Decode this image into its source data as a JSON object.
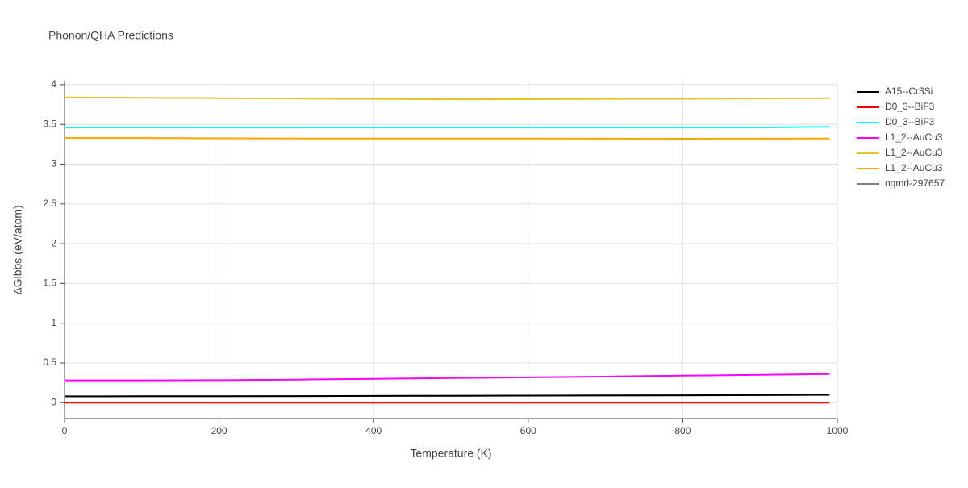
{
  "chart_data": {
    "type": "line",
    "title": "Phonon/QHA Predictions",
    "x_label": "Temperature (K)",
    "y_label": "ΔGibbs (eV/atom)",
    "x": [
      0,
      100,
      200,
      300,
      400,
      500,
      600,
      700,
      800,
      900,
      990
    ],
    "series": [
      {
        "name": "A15--Cr3Si",
        "color": "#000000",
        "values": [
          0.08,
          0.081,
          0.082,
          0.083,
          0.085,
          0.087,
          0.089,
          0.091,
          0.093,
          0.096,
          0.099
        ]
      },
      {
        "name": "D0_3--BiF3",
        "color": "#ff0000",
        "values": [
          0,
          0,
          0,
          0,
          0,
          0,
          0,
          0,
          0,
          0,
          0
        ]
      },
      {
        "name": "D0_3--BiF3",
        "color": "#00ffff",
        "values": [
          3.46,
          3.46,
          3.46,
          3.46,
          3.46,
          3.46,
          3.46,
          3.46,
          3.46,
          3.46,
          3.47
        ]
      },
      {
        "name": "L1_2--AuCu3",
        "color": "#ff00ff",
        "values": [
          0.28,
          0.281,
          0.283,
          0.29,
          0.3,
          0.31,
          0.318,
          0.328,
          0.34,
          0.35,
          0.36
        ]
      },
      {
        "name": "L1_2--AuCu3",
        "color": "#e6c229",
        "values": [
          3.84,
          3.835,
          3.83,
          3.825,
          3.82,
          3.815,
          3.817,
          3.82,
          3.822,
          3.826,
          3.83
        ]
      },
      {
        "name": "L1_2--AuCu3",
        "color": "#ffa500",
        "values": [
          3.33,
          3.328,
          3.325,
          3.323,
          3.322,
          3.322,
          3.322,
          3.321,
          3.32,
          3.321,
          3.322
        ]
      },
      {
        "name": "oqmd-297657",
        "color": "#808080",
        "values": [
          0.079,
          0.08,
          0.081,
          0.082,
          0.084,
          0.086,
          0.088,
          0.09,
          0.092,
          0.095,
          0.098
        ]
      }
    ],
    "xlim": [
      0,
      1000
    ],
    "xticks": [
      0,
      200,
      400,
      600,
      800,
      1000
    ],
    "ylim": [
      -0.2,
      4.05
    ],
    "yticks": [
      0,
      0.5,
      1,
      1.5,
      2,
      2.5,
      3,
      3.5,
      4
    ],
    "grid": true
  }
}
